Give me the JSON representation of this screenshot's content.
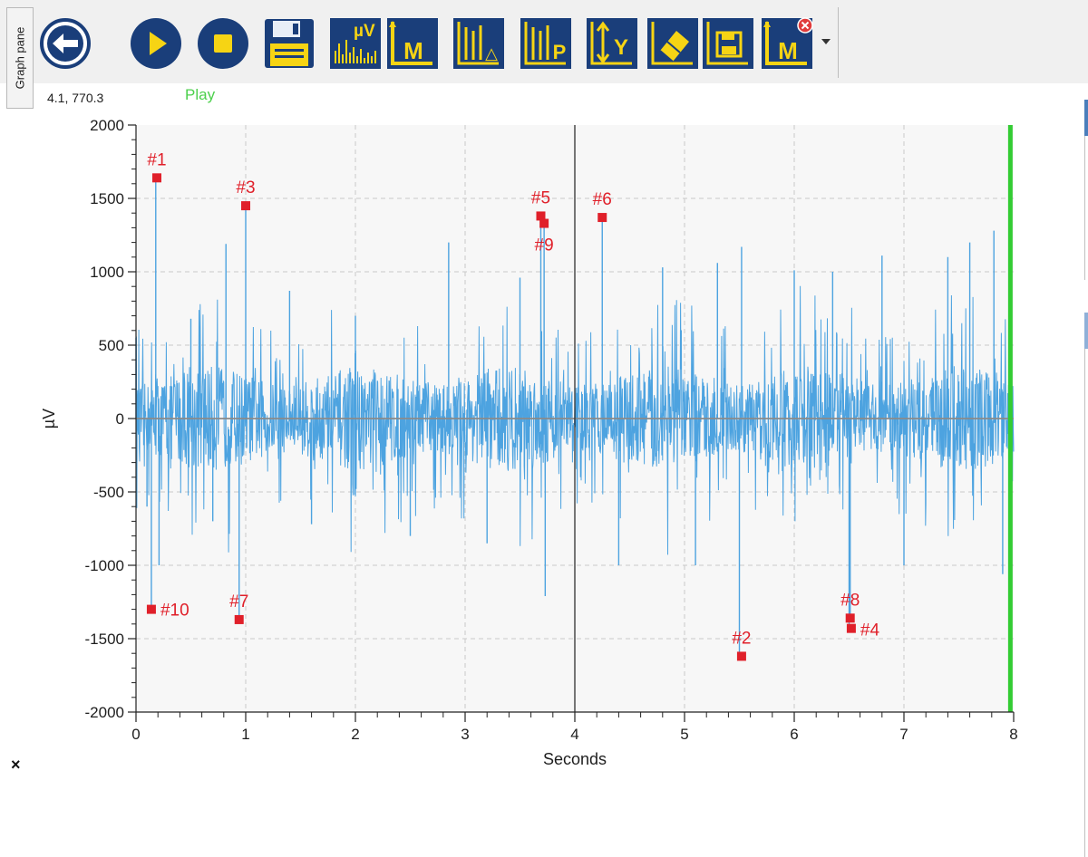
{
  "panel_tab": "Graph pane",
  "coordinate_readout": "4.1, 770.3",
  "status_text": "Play",
  "toolbar": {
    "buttons": [
      {
        "name": "back-arrow-icon"
      },
      {
        "name": "play-icon"
      },
      {
        "name": "stop-icon"
      },
      {
        "name": "save-disk-icon"
      },
      {
        "name": "microvolt-scale-icon",
        "text": "µV"
      },
      {
        "name": "marker-icon",
        "text": "M"
      },
      {
        "name": "peak-detect-icon",
        "text": "△"
      },
      {
        "name": "peak-parameters-icon",
        "text": "P"
      },
      {
        "name": "y-axis-icon",
        "text": "Y"
      },
      {
        "name": "eraser-icon"
      },
      {
        "name": "save-chart-icon"
      },
      {
        "name": "clear-markers-icon",
        "text": "M"
      }
    ]
  },
  "colors": {
    "toolbar_icon_bg": "#1a3e7a",
    "toolbar_icon_fg": "#f6d414",
    "signal": "#4da3e0",
    "marker": "#e0202a",
    "cursor": "#33cc33",
    "plot_bg": "#f7f7f7"
  },
  "chart_data": {
    "type": "line",
    "xlabel": "Seconds",
    "ylabel": "µV",
    "xlim": [
      0,
      8
    ],
    "ylim": [
      -2000,
      2000
    ],
    "x_ticks": [
      "0",
      "1",
      "2",
      "3",
      "4",
      "5",
      "6",
      "7",
      "8"
    ],
    "y_ticks": [
      "2000",
      "1500",
      "1000",
      "500",
      "0",
      "-500",
      "-1000",
      "-1500",
      "-2000"
    ],
    "grid": true,
    "vertical_reference_x": 4.0,
    "cursor_x": 7.97,
    "series": [
      {
        "style": "dense oscillating trace",
        "description_points": [
          [
            0.0,
            550
          ],
          [
            0.1,
            -600
          ],
          [
            0.18,
            1640
          ],
          [
            0.14,
            -1300
          ],
          [
            0.21,
            -1000
          ],
          [
            0.5,
            680
          ],
          [
            0.7,
            -700
          ],
          [
            0.82,
            1190
          ],
          [
            0.94,
            -1370
          ],
          [
            1.0,
            1450
          ],
          [
            1.4,
            870
          ],
          [
            1.6,
            -720
          ],
          [
            2.0,
            700
          ],
          [
            2.5,
            -800
          ],
          [
            2.85,
            1200
          ],
          [
            3.2,
            -850
          ],
          [
            3.5,
            960
          ],
          [
            3.69,
            1380
          ],
          [
            3.72,
            1330
          ],
          [
            3.73,
            -1210
          ],
          [
            4.25,
            1370
          ],
          [
            4.4,
            -1000
          ],
          [
            4.8,
            1030
          ],
          [
            5.1,
            -1000
          ],
          [
            5.3,
            1060
          ],
          [
            5.5,
            -1620
          ],
          [
            5.52,
            1170
          ],
          [
            6.0,
            1010
          ],
          [
            6.35,
            1000
          ],
          [
            6.5,
            -1430
          ],
          [
            6.51,
            -1360
          ],
          [
            6.8,
            1110
          ],
          [
            7.0,
            -1000
          ],
          [
            7.4,
            1100
          ],
          [
            7.6,
            1200
          ],
          [
            7.82,
            1280
          ],
          [
            7.9,
            -1060
          ]
        ]
      }
    ],
    "markers": [
      {
        "label": "#1",
        "x": 0.19,
        "y": 1640
      },
      {
        "label": "#2",
        "x": 5.52,
        "y": -1620
      },
      {
        "label": "#3",
        "x": 1.0,
        "y": 1450
      },
      {
        "label": "#4",
        "x": 6.52,
        "y": -1430
      },
      {
        "label": "#5",
        "x": 3.69,
        "y": 1380
      },
      {
        "label": "#6",
        "x": 4.25,
        "y": 1370
      },
      {
        "label": "#7",
        "x": 0.94,
        "y": -1370
      },
      {
        "label": "#8",
        "x": 6.51,
        "y": -1360
      },
      {
        "label": "#9",
        "x": 3.72,
        "y": 1330
      },
      {
        "label": "#10",
        "x": 0.14,
        "y": -1300
      }
    ]
  }
}
